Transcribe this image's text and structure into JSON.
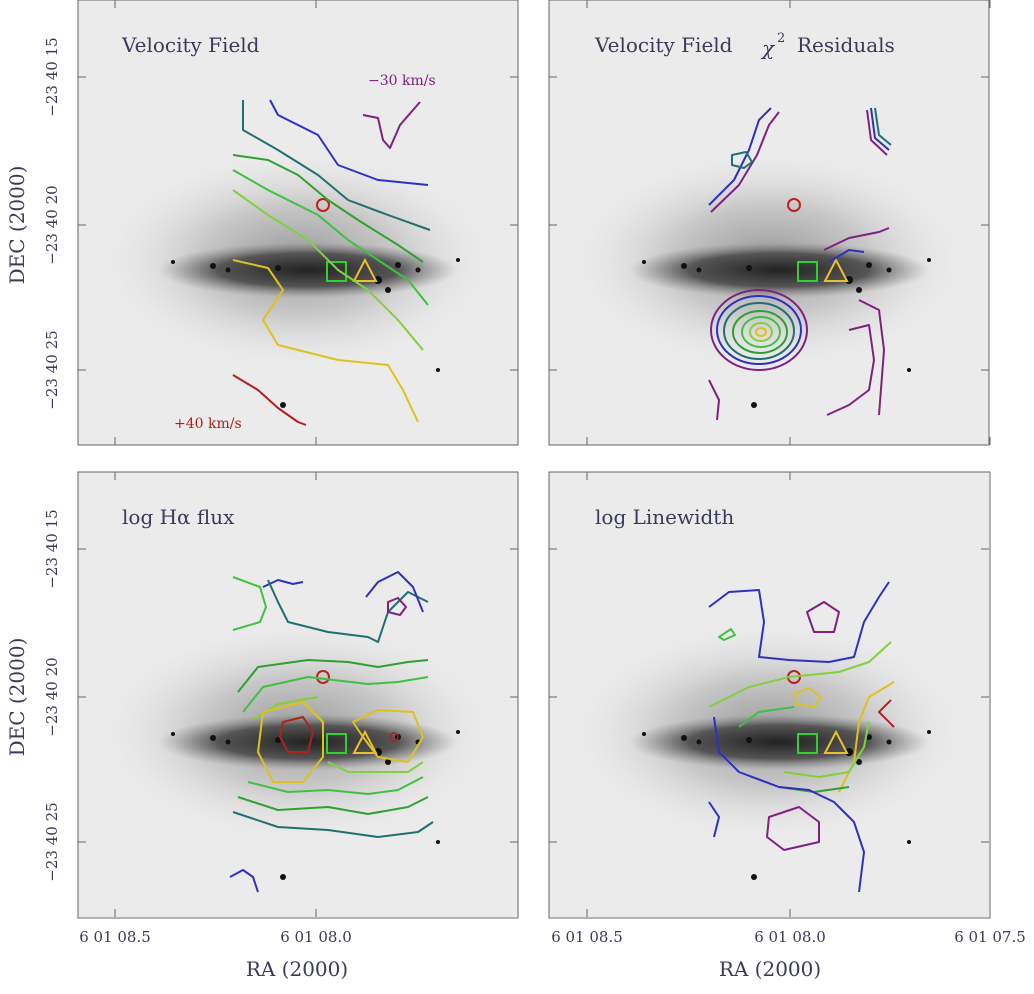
{
  "panels": [
    {
      "title": "Velocity Field",
      "annotations": [
        "−30 km/s",
        "+40 km/s"
      ]
    },
    {
      "title": "Velocity Field",
      "symbol": "χ",
      "superscript": "2",
      "title_end": "Residuals"
    },
    {
      "title": "log Hα flux"
    },
    {
      "title": "log Linewidth"
    }
  ],
  "y_axis": {
    "label": "DEC (2000)",
    "ticks": [
      "−23 40 15",
      "−23 40 20",
      "−23 40 25"
    ]
  },
  "x_axis": {
    "label": "RA (2000)",
    "ticks_left": [
      "6 01 08.5",
      "6 01 08.0"
    ],
    "ticks_right": [
      "6 01 08.5",
      "6 01 08.0",
      "6 01 07.5"
    ]
  }
}
